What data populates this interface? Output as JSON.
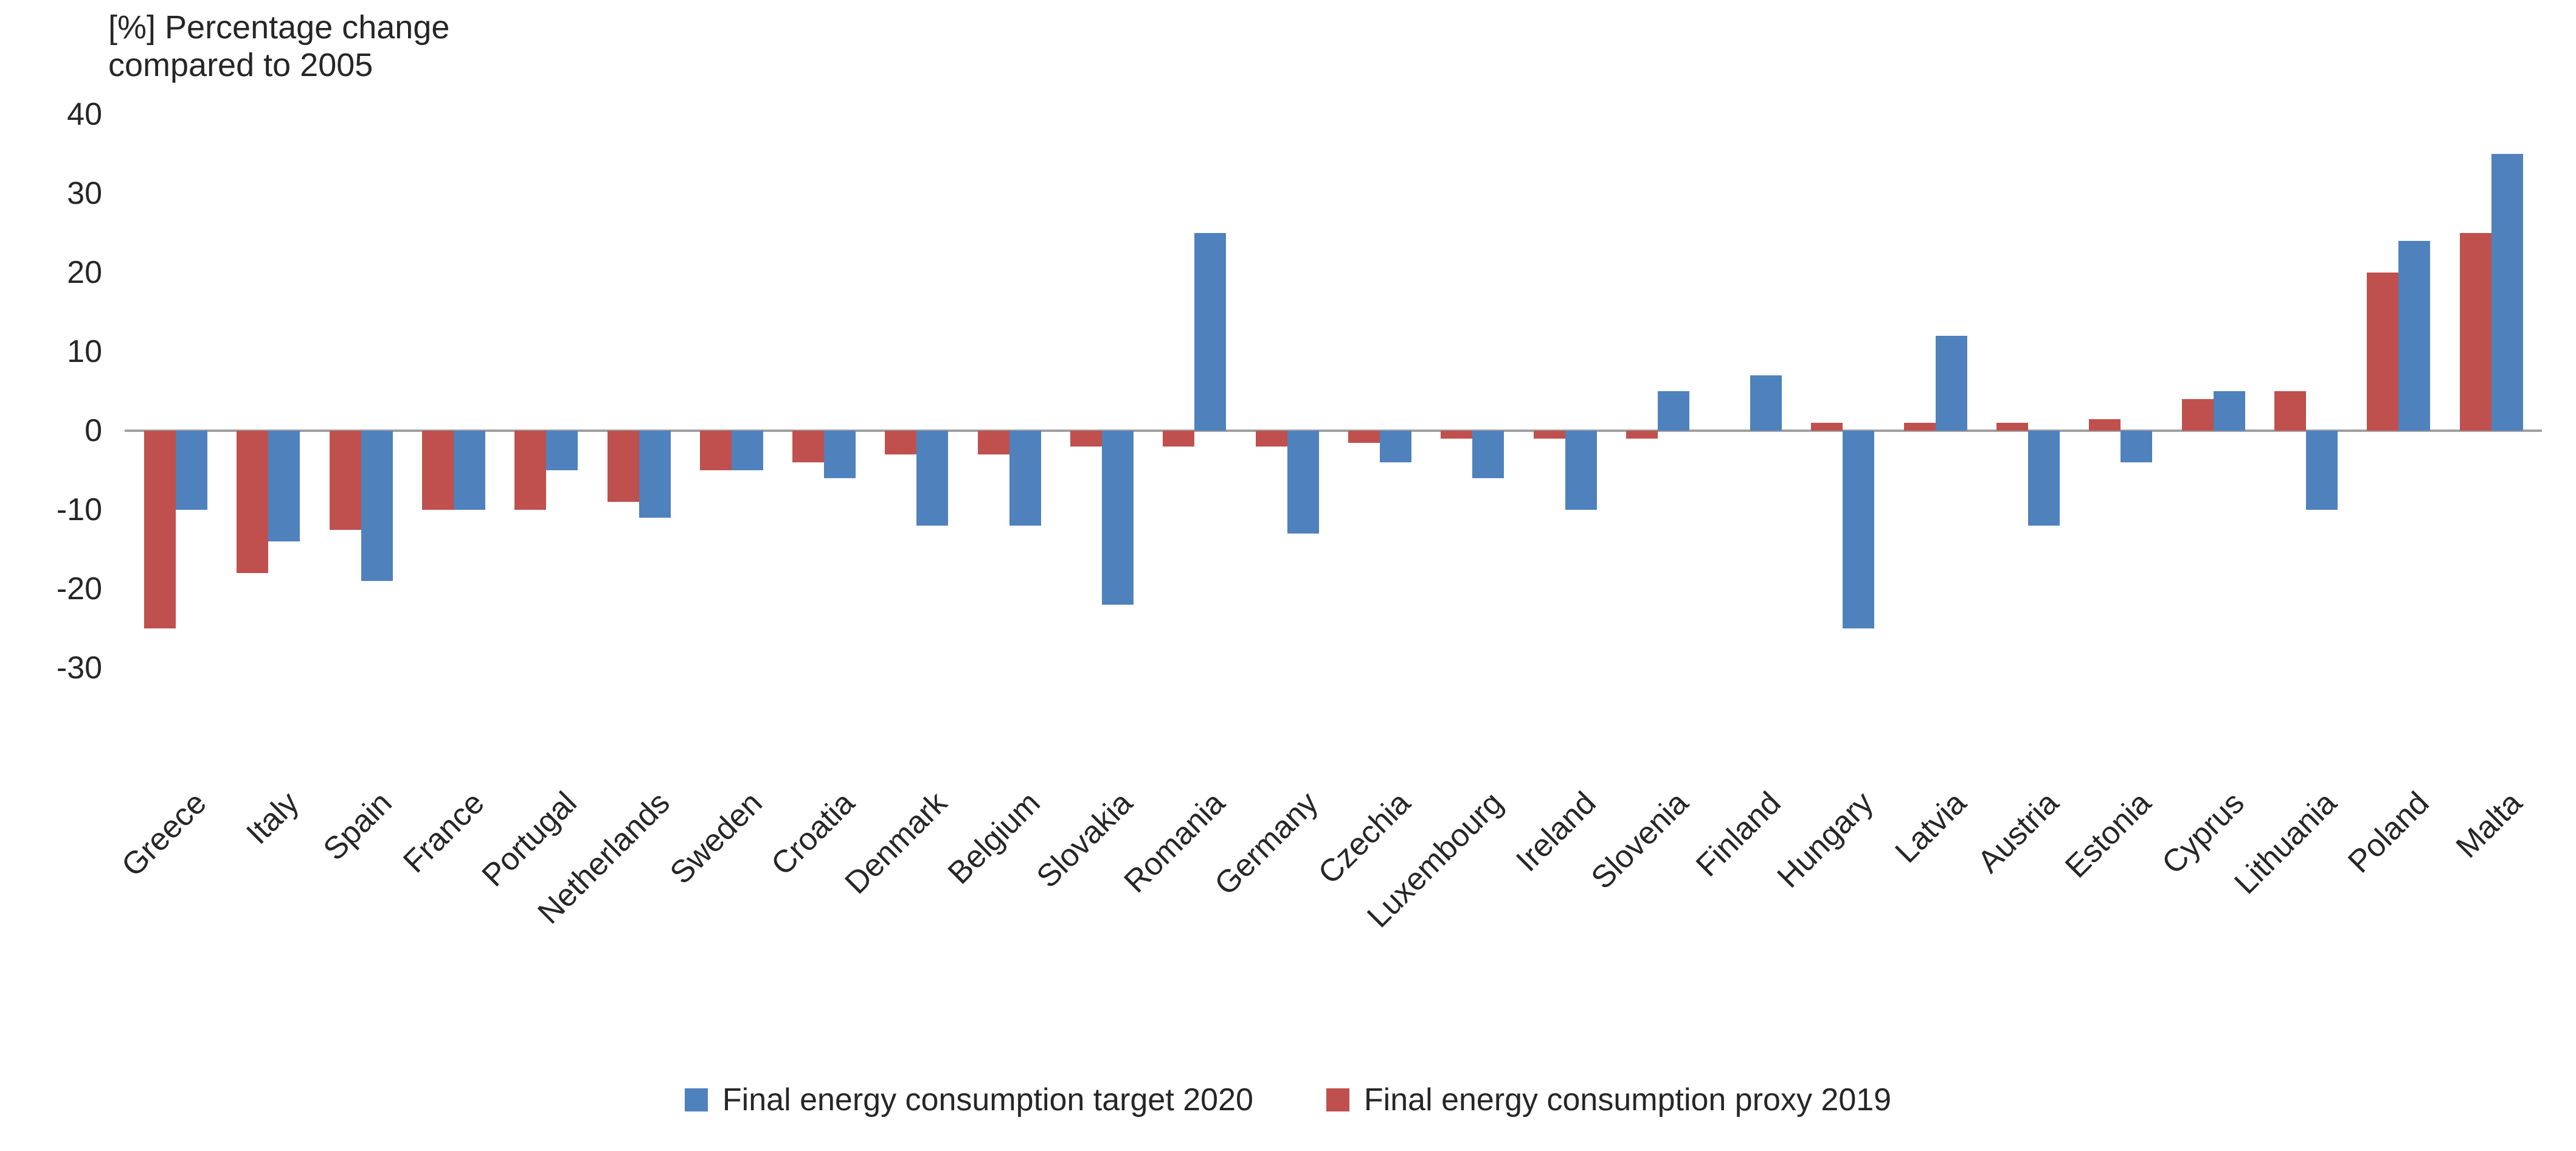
{
  "chart_data": {
    "type": "bar",
    "title": "[%] Percentage change compared to 2005",
    "title_lines": [
      "[%] Percentage change",
      "compared to 2005"
    ],
    "xlabel": "",
    "ylabel": "[%] Percentage change compared to 2005",
    "ylim": [
      -30,
      40
    ],
    "yticks": [
      40,
      30,
      20,
      10,
      0,
      -10,
      -20,
      -30
    ],
    "grid": "off",
    "legend_position": "bottom",
    "axis_color": "#a0a0a0",
    "text_color": "#262626",
    "categories": [
      "Greece",
      "Italy",
      "Spain",
      "France",
      "Portugal",
      "Netherlands",
      "Sweden",
      "Croatia",
      "Denmark",
      "Belgium",
      "Slovakia",
      "Romania",
      "Germany",
      "Czechia",
      "Luxembourg",
      "Ireland",
      "Slovenia",
      "Finland",
      "Hungary",
      "Latvia",
      "Austria",
      "Estonia",
      "Cyprus",
      "Lithuania",
      "Poland",
      "Malta"
    ],
    "series": [
      {
        "name": "Final energy consumption target 2020",
        "color": "#4F81BD",
        "values": [
          -10,
          -14,
          -19,
          -10,
          -5,
          -11,
          -5,
          -6,
          -12,
          -12,
          -22,
          25,
          -13,
          -4,
          -6,
          -10,
          5,
          7,
          -25,
          12,
          -12,
          -4,
          5,
          -10,
          24,
          35
        ]
      },
      {
        "name": "Final energy consumption proxy 2019",
        "color": "#C0504D",
        "values": [
          -25,
          -18,
          -12.5,
          -10,
          -10,
          -9,
          -5,
          -4,
          -3,
          -3,
          -2,
          -2,
          -2,
          -1.5,
          -1,
          -1,
          -1,
          0,
          1,
          1,
          1,
          1.5,
          4,
          5,
          20,
          25
        ]
      }
    ]
  },
  "layout_note": "red proxy bars drawn left of blue target bars in each group"
}
